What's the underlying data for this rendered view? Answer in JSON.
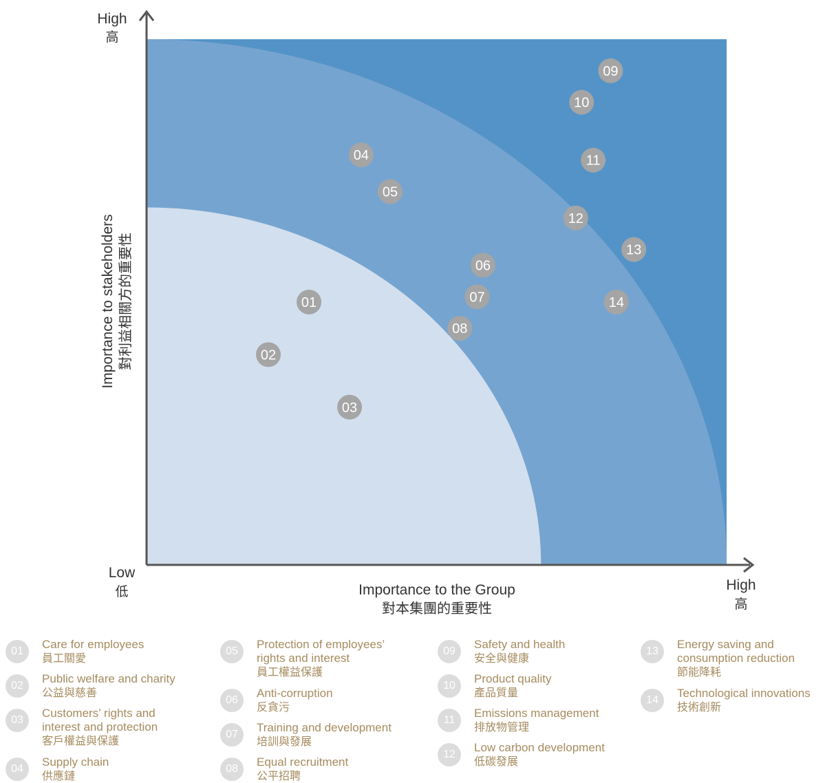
{
  "chart_data": {
    "type": "scatter",
    "title": "",
    "xlabel": "Importance to the Group",
    "xlabel_zh": "對本集團的重要性",
    "ylabel": "Importance to stakeholders",
    "ylabel_zh": "對利益相關方的重要性",
    "xlim": [
      0,
      100
    ],
    "ylim": [
      0,
      100
    ],
    "axis_markers": {
      "origin": {
        "en": "Low",
        "zh": "低"
      },
      "y_top": {
        "en": "High",
        "zh": "高"
      },
      "x_right": {
        "en": "High",
        "zh": "高"
      }
    },
    "zones": [
      {
        "level": "high",
        "color": "#5493c7"
      },
      {
        "level": "medium",
        "color": "#76a4d0"
      },
      {
        "level": "low",
        "color": "#d2dfee"
      }
    ],
    "zone_radii": [
      68,
      100
    ],
    "points": [
      {
        "label": "01",
        "x": 28,
        "y": 50
      },
      {
        "label": "02",
        "x": 21,
        "y": 40
      },
      {
        "label": "03",
        "x": 35,
        "y": 30
      },
      {
        "label": "04",
        "x": 37,
        "y": 78
      },
      {
        "label": "05",
        "x": 42,
        "y": 71
      },
      {
        "label": "06",
        "x": 58,
        "y": 57
      },
      {
        "label": "07",
        "x": 57,
        "y": 51
      },
      {
        "label": "08",
        "x": 54,
        "y": 45
      },
      {
        "label": "09",
        "x": 80,
        "y": 94
      },
      {
        "label": "10",
        "x": 75,
        "y": 88
      },
      {
        "label": "11",
        "x": 77,
        "y": 77
      },
      {
        "label": "12",
        "x": 74,
        "y": 66
      },
      {
        "label": "13",
        "x": 84,
        "y": 60
      },
      {
        "label": "14",
        "x": 81,
        "y": 50
      }
    ],
    "point_color": "#a5a5a5",
    "axis_color": "#555555"
  },
  "legend": [
    {
      "num": "01",
      "en": [
        "Care for employees"
      ],
      "zh": "員工關愛"
    },
    {
      "num": "02",
      "en": [
        "Public welfare and charity"
      ],
      "zh": "公益與慈善"
    },
    {
      "num": "03",
      "en": [
        "Customers’ rights and",
        "interest and protection"
      ],
      "zh": "客戶權益與保護"
    },
    {
      "num": "04",
      "en": [
        "Supply chain"
      ],
      "zh": "供應鏈"
    },
    {
      "num": "05",
      "en": [
        "Protection of employees’",
        "rights and interest"
      ],
      "zh": "員工權益保護"
    },
    {
      "num": "06",
      "en": [
        "Anti-corruption"
      ],
      "zh": "反貪污"
    },
    {
      "num": "07",
      "en": [
        "Training and development"
      ],
      "zh": "培訓與發展"
    },
    {
      "num": "08",
      "en": [
        "Equal recruitment"
      ],
      "zh": "公平招聘"
    },
    {
      "num": "09",
      "en": [
        "Safety and health"
      ],
      "zh": "安全與健康"
    },
    {
      "num": "10",
      "en": [
        "Product quality"
      ],
      "zh": "產品質量"
    },
    {
      "num": "11",
      "en": [
        "Emissions management"
      ],
      "zh": "排放物管理"
    },
    {
      "num": "12",
      "en": [
        "Low carbon development"
      ],
      "zh": "低碳發展"
    },
    {
      "num": "13",
      "en": [
        "Energy saving and",
        "consumption reduction"
      ],
      "zh": "節能降耗"
    },
    {
      "num": "14",
      "en": [
        "Technological innovations"
      ],
      "zh": "技術創新"
    }
  ],
  "colors": {
    "legend_text": "#a68b5e",
    "legend_badge": "#dcdcdc"
  }
}
